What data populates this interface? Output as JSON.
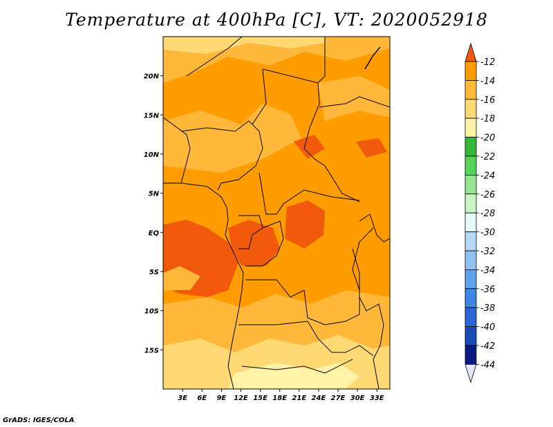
{
  "title": "Temperature at 400hPa [C], VT: 2020052918",
  "credit": "GrADS: IGES/COLA",
  "map": {
    "lat_labels": [
      "20N",
      "15N",
      "10N",
      "5N",
      "EQ",
      "5S",
      "10S",
      "15S"
    ],
    "lon_labels": [
      "3E",
      "6E",
      "9E",
      "12E",
      "15E",
      "18E",
      "21E",
      "24E",
      "27E",
      "30E",
      "33E"
    ],
    "extent": {
      "lon_min": 0,
      "lon_max": 35,
      "lat_min": -20,
      "lat_max": 25
    }
  },
  "colorbar": {
    "labels": [
      "-12",
      "-14",
      "-16",
      "-18",
      "-20",
      "-22",
      "-24",
      "-26",
      "-28",
      "-30",
      "-32",
      "-34",
      "-36",
      "-38",
      "-40",
      "-42",
      "-44"
    ],
    "colors": [
      "#f05a0a",
      "#ff9c00",
      "#ffb83a",
      "#ffd974",
      "#fff3a8",
      "#35b835",
      "#57d357",
      "#96e590",
      "#c8f5c2",
      "#e7fafa",
      "#b6d8f7",
      "#8ec2f0",
      "#5ea4ea",
      "#3d86e3",
      "#2a68d7",
      "#1a4cb8",
      "#0a1a80"
    ],
    "top_arrow_color": "#f05a0a",
    "bottom_arrow_color": "#e6e8fb"
  }
}
